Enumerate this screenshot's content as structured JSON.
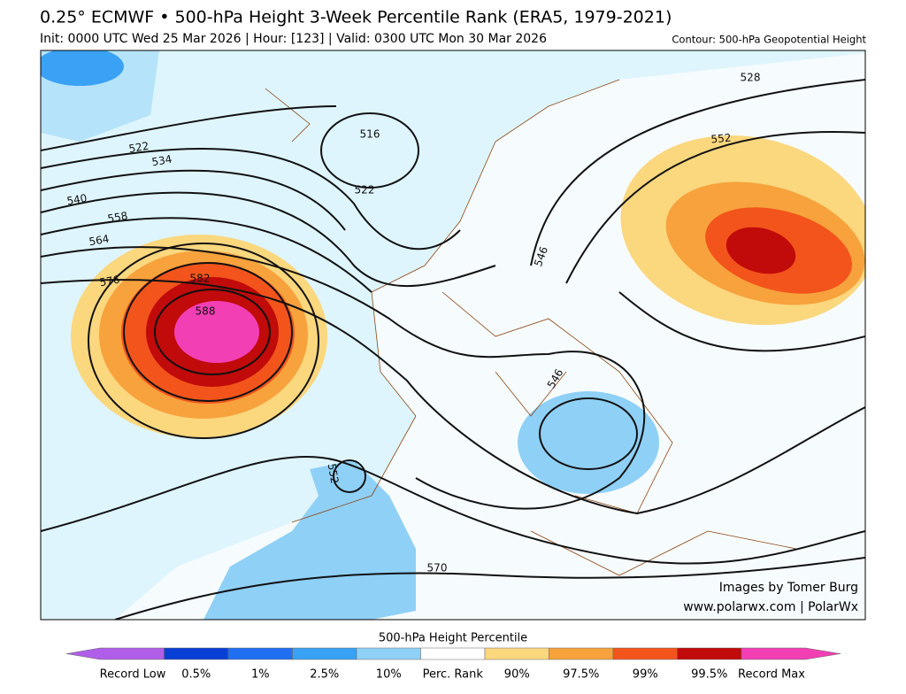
{
  "header": {
    "title": "0.25° ECMWF • 500-hPa Height 3-Week Percentile Rank (ERA5, 1979-2021)",
    "subtitle": "Init: 0000 UTC Wed 25 Mar 2026 | Hour: [123] | Valid: 0300 UTC Mon 30 Mar 2026",
    "contour_note": "Contour: 500-hPa Geopotential Height"
  },
  "map": {
    "contour_labels": [
      "516",
      "522",
      "522",
      "534",
      "540",
      "558",
      "564",
      "576",
      "582",
      "588",
      "546",
      "546",
      "552",
      "570",
      "528",
      "552"
    ]
  },
  "credits": [
    "Images by Tomer Burg",
    "www.polarwx.com | PolarWx"
  ],
  "colorbar": {
    "title": "500-hPa Height Percentile",
    "segments": [
      {
        "label": "Record Low",
        "color": "#b05ee8"
      },
      {
        "label": "0.5%",
        "color": "#0a3fd6"
      },
      {
        "label": "1%",
        "color": "#1f6ff0"
      },
      {
        "label": "2.5%",
        "color": "#3aa2f5"
      },
      {
        "label": "10%",
        "color": "#8fd0f7"
      },
      {
        "label": "Perc. Rank",
        "color": "#ffffff"
      },
      {
        "label": "90%",
        "color": "#fbd77e"
      },
      {
        "label": "97.5%",
        "color": "#f7a23c"
      },
      {
        "label": "99%",
        "color": "#f2541b"
      },
      {
        "label": "99.5%",
        "color": "#c10a0a"
      },
      {
        "label": "Record Max",
        "color": "#f23fb4"
      }
    ]
  }
}
